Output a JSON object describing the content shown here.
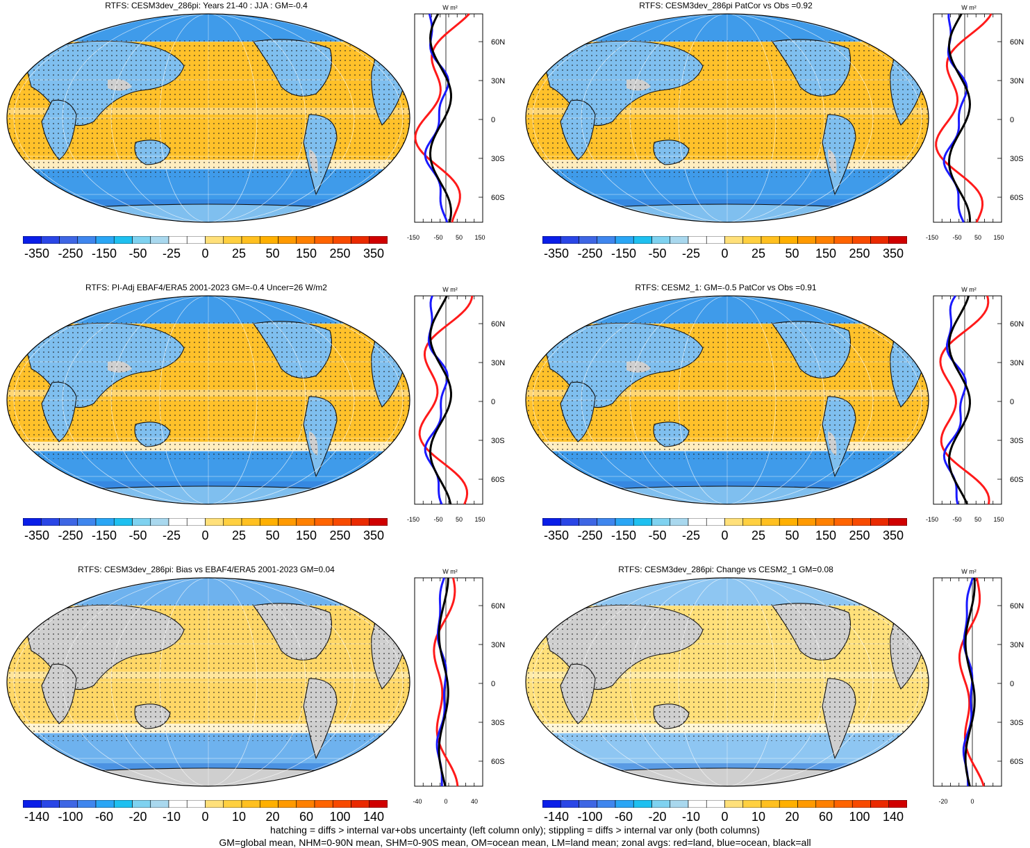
{
  "panels": [
    {
      "title": "RTFS: CESM3dev_286pi: Years 21-40 : JJA : GM=-0.4"
    },
    {
      "title": "RTFS: CESM3dev_286pi PatCor vs Obs =0.92"
    },
    {
      "title": "RTFS: PI-Adj EBAF4/ERA5 2001-2023 GM=-0.4 Uncer=26 W/m2"
    },
    {
      "title": "RTFS: CESM2_1: GM=-0.5 PatCor vs Obs =0.91"
    },
    {
      "title": "RTFS: CESM3dev_286pi: Bias vs EBAF4/ERA5 2001-2023 GM=0.04"
    },
    {
      "title": "RTFS: CESM3dev_286pi: Change vs CESM2_1 GM=0.08"
    }
  ],
  "colorbars": {
    "full": {
      "labels": [
        "-350",
        "-250",
        "-150",
        "-50",
        "-25",
        "0",
        "25",
        "50",
        "150",
        "250",
        "350"
      ],
      "colors": [
        "#0a1ee8",
        "#2a46e6",
        "#3e66e4",
        "#3f86ee",
        "#2aa6f5",
        "#1ec0f0",
        "#7fd2f0",
        "#a9d8ee",
        "#ffffff",
        "#ffffff",
        "#ffe07a",
        "#ffd040",
        "#ffc020",
        "#ffb000",
        "#ff9a00",
        "#ff8000",
        "#ff6400",
        "#f84a00",
        "#ea2a00",
        "#d00000"
      ]
    },
    "diff": {
      "labels": [
        "-140",
        "-100",
        "-60",
        "-20",
        "-10",
        "0",
        "10",
        "20",
        "60",
        "100",
        "140"
      ],
      "colors": [
        "#0a1ee8",
        "#2a46e6",
        "#3e66e4",
        "#3f86ee",
        "#2aa6f5",
        "#1ec0f0",
        "#7fd2f0",
        "#a9d8ee",
        "#ffffff",
        "#ffffff",
        "#ffe07a",
        "#ffd040",
        "#ffc020",
        "#ffb000",
        "#ff9a00",
        "#ff8000",
        "#ff6400",
        "#f84a00",
        "#ea2a00",
        "#d00000"
      ]
    }
  },
  "zonal": {
    "unit_label": "W m²",
    "lat_labels": [
      "60N",
      "30N",
      "0",
      "30S",
      "60S"
    ],
    "xticks_full": [
      "-150",
      "-50",
      "50",
      "150"
    ],
    "xticks_diff_left": [
      "-40",
      "0",
      "40"
    ],
    "xticks_diff_right": [
      "-20",
      "0"
    ]
  },
  "chart_data": [
    {
      "type": "heatmap",
      "title": "RTFS: CESM3dev_286pi: Years 21-40 : JJA : GM=-0.4",
      "colorbar": "full",
      "zonal_series": [
        {
          "name": "red=land"
        },
        {
          "name": "blue=ocean"
        },
        {
          "name": "black=all"
        }
      ],
      "zonal_xlim": [
        -150,
        150
      ],
      "zonal_lat_ticks": [
        "60N",
        "30N",
        "0",
        "30S",
        "60S"
      ]
    },
    {
      "type": "heatmap",
      "title": "RTFS: CESM3dev_286pi PatCor vs Obs =0.92",
      "colorbar": "full",
      "zonal_xlim": [
        -150,
        150
      ]
    },
    {
      "type": "heatmap",
      "title": "RTFS: PI-Adj EBAF4/ERA5 2001-2023 GM=-0.4 Uncer=26 W/m2",
      "colorbar": "full",
      "zonal_xlim": [
        -150,
        150
      ]
    },
    {
      "type": "heatmap",
      "title": "RTFS: CESM2_1: GM=-0.5 PatCor vs Obs =0.91",
      "colorbar": "full",
      "zonal_xlim": [
        -150,
        150
      ]
    },
    {
      "type": "heatmap",
      "title": "RTFS: CESM3dev_286pi: Bias vs EBAF4/ERA5 2001-2023 GM=0.04",
      "colorbar": "diff",
      "zonal_xlim": [
        -40,
        40
      ]
    },
    {
      "type": "heatmap",
      "title": "RTFS: CESM3dev_286pi: Change vs CESM2_1 GM=0.08",
      "colorbar": "diff",
      "zonal_xlim": [
        -20,
        10
      ]
    }
  ],
  "footer": {
    "line1": "hatching = diffs > internal var+obs uncertainty (left column only); stippling = diffs > internal var only (both columns)",
    "line2": "GM=global mean, NHM=0-90N mean, SHM=0-90S mean, OM=ocean mean, LM=land mean; zonal avgs: red=land, blue=ocean, black=all"
  }
}
